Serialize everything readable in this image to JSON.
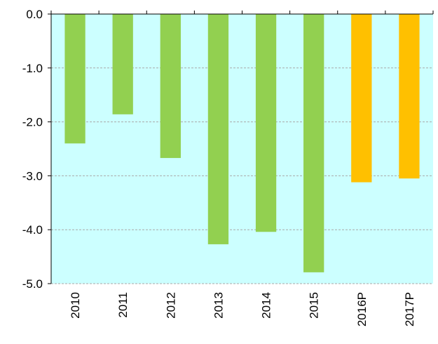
{
  "chart_data": {
    "type": "bar",
    "categories": [
      "2010",
      "2011",
      "2012",
      "2013",
      "2014",
      "2015",
      "2016P",
      "2017P"
    ],
    "values": [
      -2.4,
      -1.86,
      -2.67,
      -4.27,
      -4.04,
      -4.79,
      -3.12,
      -3.05
    ],
    "colors": [
      "#92d050",
      "#92d050",
      "#92d050",
      "#92d050",
      "#92d050",
      "#92d050",
      "#ffc000",
      "#ffc000"
    ],
    "ylim": [
      -5,
      0
    ],
    "yticks": [
      {
        "value": 0,
        "label": "0.0"
      },
      {
        "value": -1,
        "label": "-1.0"
      },
      {
        "value": -2,
        "label": "-2.0"
      },
      {
        "value": -3,
        "label": "-3.0"
      },
      {
        "value": -4,
        "label": "-4.0"
      },
      {
        "value": -5,
        "label": "-5.0"
      }
    ],
    "grid": true
  }
}
